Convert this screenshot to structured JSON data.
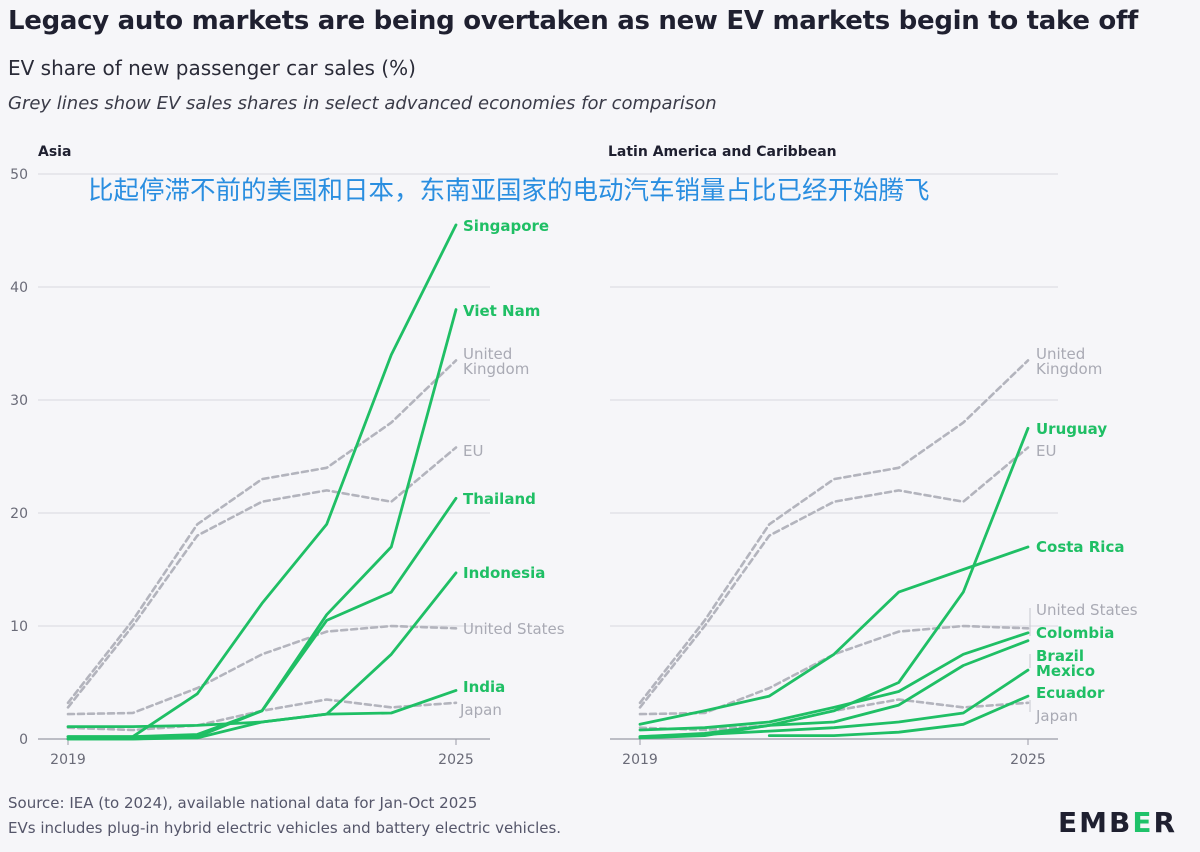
{
  "header": {
    "title": "Legacy auto markets are being overtaken as new EV markets begin to take off",
    "subtitle": "EV share of new passenger car sales (%)",
    "note": "Grey lines show EV sales shares in select advanced economies for comparison",
    "overlay_caption": "比起停滞不前的美国和日本，东南亚国家的电动汽车销量占比已经开始腾飞"
  },
  "footer": {
    "source": "Source: IEA (to 2024), available national data for Jan-Oct 2025",
    "definition": "EVs includes plug-in hybrid electric vehicles and battery electric vehicles.",
    "logo": "EMBER"
  },
  "colors": {
    "green": "#1fbf65",
    "grey": "#b3b4bd",
    "grid": "#d8d8df",
    "overlay": "#2a8ee0"
  },
  "chart_data": [
    {
      "type": "line",
      "title": "Asia",
      "x": [
        2019,
        2020,
        2021,
        2022,
        2023,
        2024,
        2025
      ],
      "x_tick_labels": [
        "2019",
        "2025"
      ],
      "ylim": [
        0,
        50
      ],
      "y_ticks": [
        0,
        10,
        20,
        30,
        40,
        50
      ],
      "series": [
        {
          "name": "Singapore",
          "color": "green",
          "label": "Singapore",
          "values": [
            0.2,
            0.2,
            4,
            12,
            19,
            34,
            45.5
          ]
        },
        {
          "name": "Viet Nam",
          "color": "green",
          "label": "Viet Nam",
          "values": [
            0,
            0,
            0.2,
            2.5,
            11,
            17,
            38
          ]
        },
        {
          "name": "Thailand",
          "color": "green",
          "label": "Thailand",
          "values": [
            0.2,
            0.2,
            0.4,
            2.5,
            10.5,
            13,
            21.3
          ]
        },
        {
          "name": "Indonesia",
          "color": "green",
          "label": "Indonesia",
          "values": [
            0,
            0,
            0.1,
            1.5,
            2.2,
            7.5,
            14.7
          ]
        },
        {
          "name": "India",
          "color": "green",
          "label": "India",
          "values": [
            1.1,
            1.1,
            1.2,
            1.5,
            2.2,
            2.3,
            4.3
          ]
        },
        {
          "name": "United Kingdom",
          "color": "grey",
          "label": "United|Kingdom",
          "values": [
            3.2,
            10.5,
            19,
            23,
            24,
            28,
            33.5
          ]
        },
        {
          "name": "EU",
          "color": "grey",
          "label": "EU",
          "values": [
            2.8,
            10,
            18,
            21,
            22,
            21,
            25.8
          ]
        },
        {
          "name": "United States",
          "color": "grey",
          "label": "United States",
          "values": [
            2.2,
            2.3,
            4.5,
            7.5,
            9.5,
            10,
            9.8
          ]
        },
        {
          "name": "Japan",
          "color": "grey",
          "label": "Japan",
          "values": [
            1,
            0.8,
            1.2,
            2.5,
            3.5,
            2.8,
            3.2
          ]
        }
      ]
    },
    {
      "type": "line",
      "title": "Latin America and Caribbean",
      "x": [
        2019,
        2020,
        2021,
        2022,
        2023,
        2024,
        2025
      ],
      "x_tick_labels": [
        "2019",
        "2025"
      ],
      "ylim": [
        0,
        50
      ],
      "y_ticks": [
        0,
        10,
        20,
        30,
        40,
        50
      ],
      "series": [
        {
          "name": "Uruguay",
          "color": "green",
          "label": "Uruguay",
          "values": [
            0.1,
            0.3,
            1.2,
            2.5,
            5,
            13,
            27.5
          ]
        },
        {
          "name": "Costa Rica",
          "color": "green",
          "label": "Costa Rica",
          "values": [
            1.3,
            2.5,
            3.8,
            7.5,
            13,
            15,
            17
          ]
        },
        {
          "name": "Colombia",
          "color": "green",
          "label": "Colombia",
          "values": [
            0.8,
            1,
            1.5,
            2.8,
            4.2,
            7.5,
            9.4
          ]
        },
        {
          "name": "Brazil",
          "color": "green",
          "label": "Brazil",
          "values": [
            0.2,
            0.5,
            1.2,
            1.5,
            3,
            6.5,
            8.7
          ]
        },
        {
          "name": "Mexico",
          "color": "green",
          "label": "Mexico",
          "values": [
            0.2,
            0.4,
            0.7,
            1,
            1.5,
            2.3,
            6.1
          ]
        },
        {
          "name": "Ecuador",
          "color": "green",
          "label": "Ecuador",
          "values": [
            null,
            null,
            0.3,
            0.3,
            0.6,
            1.3,
            3.8
          ]
        },
        {
          "name": "United Kingdom",
          "color": "grey",
          "label": "United|Kingdom",
          "values": [
            3.2,
            10.5,
            19,
            23,
            24,
            28,
            33.5
          ]
        },
        {
          "name": "EU",
          "color": "grey",
          "label": "EU",
          "values": [
            2.8,
            10,
            18,
            21,
            22,
            21,
            25.8
          ]
        },
        {
          "name": "United States",
          "color": "grey",
          "label": "United States",
          "values": [
            2.2,
            2.3,
            4.5,
            7.5,
            9.5,
            10,
            9.8
          ]
        },
        {
          "name": "Japan",
          "color": "grey",
          "label": "Japan",
          "values": [
            1,
            0.8,
            1.2,
            2.5,
            3.5,
            2.8,
            3.2
          ]
        }
      ]
    }
  ]
}
